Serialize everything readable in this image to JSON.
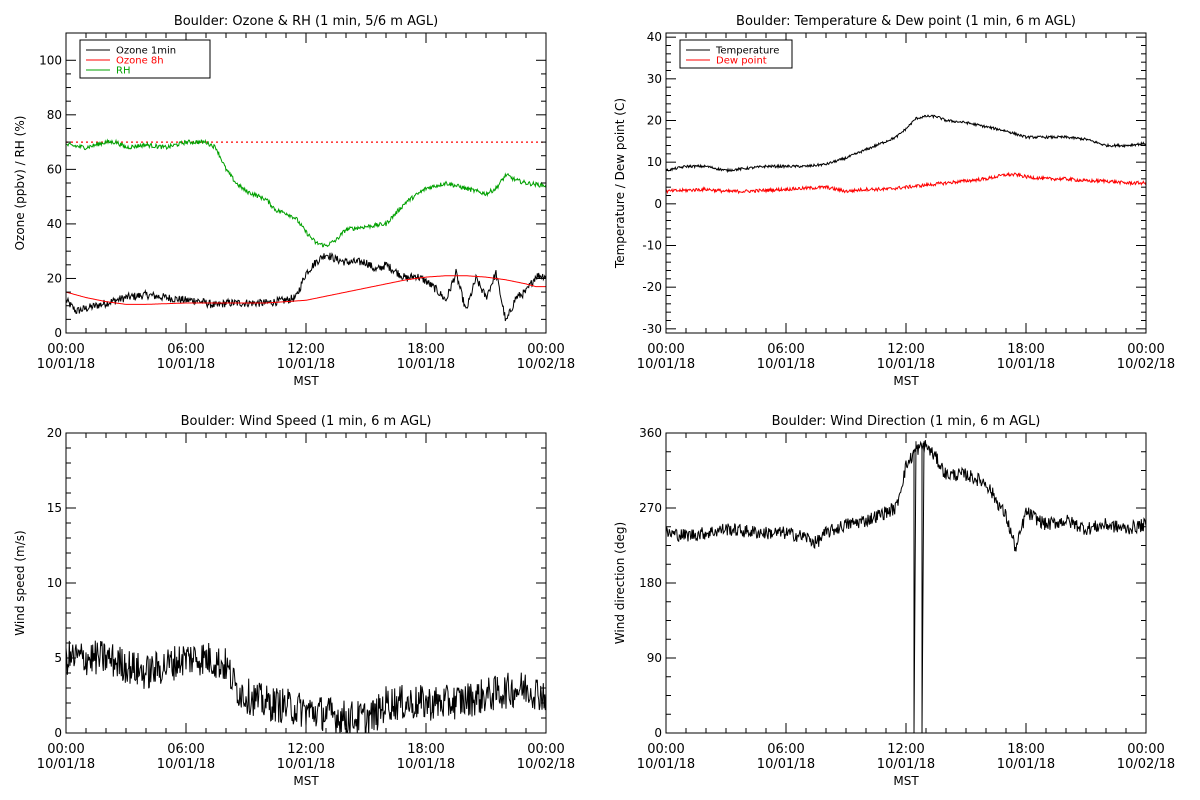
{
  "chart_data": [
    {
      "type": "line",
      "title": "Boulder: Ozone & RH (1 min, 5/6 m AGL)",
      "xlabel": "MST",
      "ylabel": "Ozone (ppbv) / RH (%)",
      "xlim_hours": [
        0,
        24
      ],
      "ylim": [
        0,
        110
      ],
      "yticks": [
        0,
        20,
        40,
        60,
        80,
        100
      ],
      "x_tick_labels": [
        [
          "00:00",
          "10/01/18"
        ],
        [
          "06:00",
          "10/01/18"
        ],
        [
          "12:00",
          "10/01/18"
        ],
        [
          "18:00",
          "10/01/18"
        ],
        [
          "00:00",
          "10/02/18"
        ]
      ],
      "legend": {
        "position": "top-left",
        "entries": [
          "Ozone 1min",
          "Ozone 8h",
          "RH"
        ]
      },
      "reference_line": {
        "y": 70,
        "style": "dotted",
        "color": "#ff0000"
      },
      "series": [
        {
          "name": "Ozone 1min",
          "color": "#000000",
          "noise": 1.5,
          "x": [
            0,
            0.5,
            1,
            1.5,
            2,
            3,
            4,
            5,
            6,
            6.5,
            7,
            7.5,
            8,
            9,
            10,
            11,
            11.5,
            12,
            12.5,
            13,
            13.5,
            14,
            15,
            15.5,
            16,
            17,
            17.5,
            18,
            18.5,
            19,
            19.5,
            20,
            20.5,
            21,
            21.5,
            22,
            22.5,
            23,
            23.5,
            24
          ],
          "y": [
            12,
            8,
            9,
            10,
            11,
            13,
            14,
            13,
            12,
            12,
            11,
            10,
            11,
            11,
            11,
            12,
            13,
            22,
            26,
            29,
            27,
            26,
            26,
            23,
            25,
            20,
            21,
            19,
            16,
            12,
            22,
            8,
            20,
            13,
            22,
            4,
            13,
            15,
            21,
            21
          ]
        },
        {
          "name": "Ozone 8h",
          "color": "#ff0000",
          "noise": 0,
          "x": [
            0,
            1,
            2,
            3,
            4,
            6,
            8,
            10,
            11,
            12,
            13,
            14,
            15,
            16,
            17,
            18,
            19,
            20,
            21,
            22,
            23,
            23.5,
            24
          ],
          "y": [
            15,
            13,
            11.5,
            10.5,
            10.5,
            11,
            11,
            11,
            11.5,
            12,
            13.5,
            15,
            16.5,
            18,
            19.5,
            20.5,
            21,
            21,
            20.5,
            19.5,
            18,
            17,
            17
          ]
        },
        {
          "name": "RH",
          "color": "#00a000",
          "noise": 0.8,
          "x": [
            0,
            1,
            2,
            2.5,
            3,
            4,
            5,
            6,
            7,
            7.5,
            8,
            8.5,
            9,
            10,
            10.5,
            11,
            11.5,
            12,
            12.5,
            13,
            13.5,
            14,
            15,
            16,
            17,
            18,
            19,
            20,
            21,
            21.5,
            22,
            22.5,
            23,
            24
          ],
          "y": [
            69,
            68,
            70,
            70,
            68,
            69,
            68,
            70,
            70,
            68,
            60,
            55,
            52,
            49,
            45,
            44,
            42,
            37,
            33,
            32,
            34,
            38,
            39,
            40,
            48,
            53,
            55,
            53,
            51,
            53,
            58,
            56,
            55,
            54
          ]
        }
      ]
    },
    {
      "type": "line",
      "title": "Boulder: Temperature & Dew point (1 min, 6 m AGL)",
      "xlabel": "MST",
      "ylabel": "Temperature / Dew point (C)",
      "xlim_hours": [
        0,
        24
      ],
      "ylim": [
        -31,
        41
      ],
      "yticks": [
        -30,
        -20,
        -10,
        0,
        10,
        20,
        30,
        40
      ],
      "x_tick_labels": [
        [
          "00:00",
          "10/01/18"
        ],
        [
          "06:00",
          "10/01/18"
        ],
        [
          "12:00",
          "10/01/18"
        ],
        [
          "18:00",
          "10/01/18"
        ],
        [
          "00:00",
          "10/02/18"
        ]
      ],
      "legend": {
        "position": "top-left",
        "entries": [
          "Temperature",
          "Dew point"
        ]
      },
      "series": [
        {
          "name": "Temperature",
          "color": "#000000",
          "noise": 0.3,
          "x": [
            0,
            1,
            2,
            3,
            4,
            5,
            6,
            7,
            8,
            9,
            10,
            11,
            11.5,
            12,
            12.5,
            13,
            13.5,
            14,
            15,
            16,
            17,
            18,
            19,
            20,
            21,
            22,
            23,
            24
          ],
          "y": [
            8,
            9,
            9,
            8,
            8.5,
            9,
            9,
            9,
            9.5,
            11,
            13,
            15,
            16,
            18,
            20.5,
            21,
            21,
            20,
            19.5,
            18.5,
            17.5,
            16,
            16,
            16,
            15.5,
            14,
            14,
            14.5
          ]
        },
        {
          "name": "Dew point",
          "color": "#ff0000",
          "noise": 0.4,
          "x": [
            0,
            2,
            3,
            4,
            6,
            8,
            9,
            10,
            11,
            12,
            13,
            14,
            15,
            16,
            17,
            17.5,
            18,
            19,
            20,
            21,
            22,
            23,
            24
          ],
          "y": [
            3,
            3.5,
            3,
            3,
            3.5,
            4,
            3,
            3.5,
            3.5,
            4,
            4.5,
            5,
            5.5,
            6,
            7,
            7,
            6.5,
            6,
            6,
            5.5,
            5.5,
            5,
            5
          ]
        }
      ]
    },
    {
      "type": "line",
      "title": "Boulder: Wind Speed (1 min, 6 m AGL)",
      "xlabel": "MST",
      "ylabel": "Wind speed (m/s)",
      "xlim_hours": [
        0,
        24
      ],
      "ylim": [
        0,
        20
      ],
      "yticks": [
        0,
        5,
        10,
        15,
        20
      ],
      "x_tick_labels": [
        [
          "00:00",
          "10/01/18"
        ],
        [
          "06:00",
          "10/01/18"
        ],
        [
          "12:00",
          "10/01/18"
        ],
        [
          "18:00",
          "10/01/18"
        ],
        [
          "00:00",
          "10/02/18"
        ]
      ],
      "series": [
        {
          "color": "#000000",
          "noise": 1.2,
          "x": [
            0,
            1,
            2,
            3,
            4,
            5,
            6,
            7,
            8,
            8.5,
            9,
            10,
            11,
            12,
            13,
            14,
            15,
            15.5,
            16,
            17,
            18,
            19,
            20,
            21,
            22,
            23,
            24
          ],
          "y": [
            5,
            5,
            5,
            4.5,
            4,
            4.5,
            5,
            5,
            4.5,
            3,
            2.5,
            2,
            1.8,
            1.5,
            1.3,
            1,
            1,
            1.2,
            2,
            2,
            2,
            2,
            2.2,
            2.5,
            2.8,
            3,
            2.5
          ]
        }
      ]
    },
    {
      "type": "line",
      "title": "Boulder: Wind Direction (1 min, 6 m AGL)",
      "xlabel": "MST",
      "ylabel": "Wind direction (deg)",
      "xlim_hours": [
        0,
        24
      ],
      "ylim": [
        0,
        360
      ],
      "yticks": [
        0,
        90,
        180,
        270,
        360
      ],
      "x_tick_labels": [
        [
          "00:00",
          "10/01/18"
        ],
        [
          "06:00",
          "10/01/18"
        ],
        [
          "12:00",
          "10/01/18"
        ],
        [
          "18:00",
          "10/01/18"
        ],
        [
          "00:00",
          "10/02/18"
        ]
      ],
      "series": [
        {
          "color": "#000000",
          "noise": 8,
          "x": [
            0,
            1,
            2,
            3,
            4,
            5,
            6,
            7,
            7.5,
            8,
            9,
            10,
            11,
            11.5,
            12,
            12.5,
            13,
            13.5,
            14,
            15,
            16,
            17,
            17.5,
            18,
            19,
            20,
            21,
            22,
            23,
            24
          ],
          "y": [
            240,
            237,
            240,
            245,
            242,
            240,
            240,
            235,
            228,
            240,
            250,
            255,
            265,
            270,
            320,
            340,
            345,
            330,
            310,
            310,
            300,
            260,
            220,
            265,
            250,
            255,
            245,
            250,
            245,
            250
          ]
        }
      ]
    }
  ]
}
